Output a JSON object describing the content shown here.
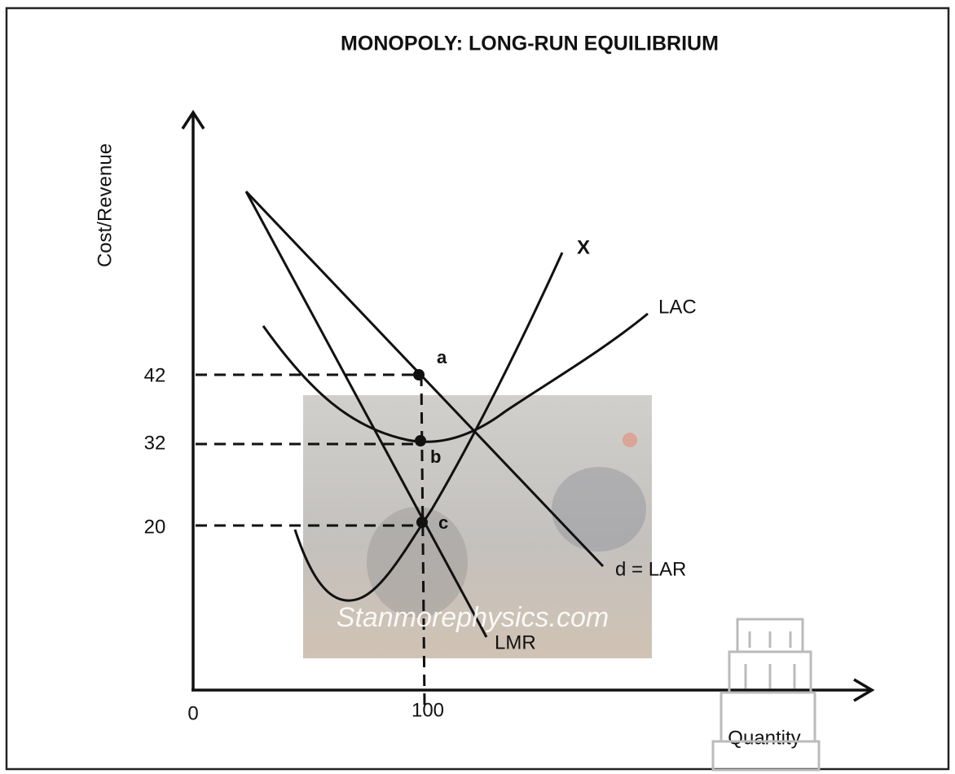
{
  "title": "MONOPOLY: LONG-RUN EQUILIBRIUM",
  "y_axis_label": "Cost/Revenue",
  "x_axis_label": "Quantity",
  "y_ticks": [
    42,
    32,
    20
  ],
  "x_ticks": [
    0,
    100
  ],
  "curves": {
    "lmc": "X",
    "lac": "LAC",
    "lar": "d = LAR",
    "lmr": "LMR"
  },
  "points": [
    "a",
    "b",
    "c"
  ],
  "watermark": "Stanmorephysics.com"
}
